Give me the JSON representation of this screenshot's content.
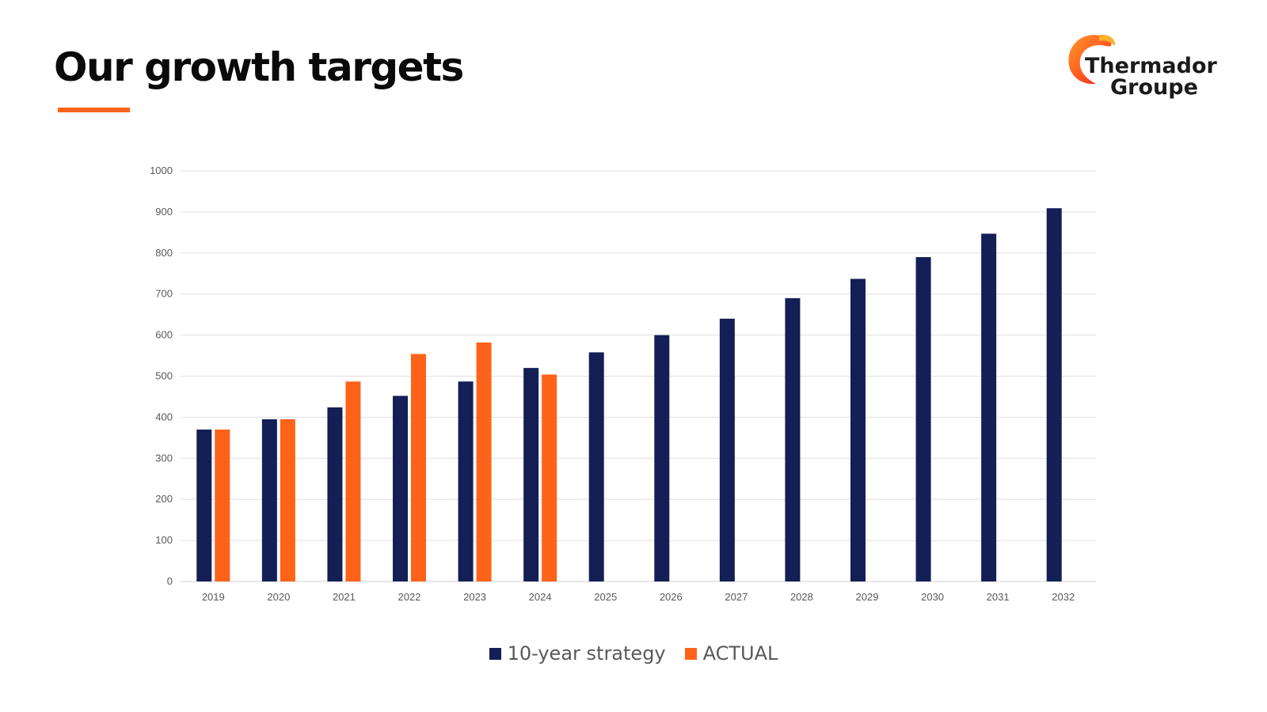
{
  "slide": {
    "title": "Our growth targets",
    "brand_color": "#ff6319"
  },
  "logo": {
    "line1": "Thermador",
    "line2": "Groupe"
  },
  "chart_data": {
    "type": "bar",
    "title": "",
    "xlabel": "",
    "ylabel": "",
    "ylim": [
      0,
      1000
    ],
    "yticks": [
      0,
      100,
      200,
      300,
      400,
      500,
      600,
      700,
      800,
      900,
      1000
    ],
    "grid": true,
    "legend_position": "bottom",
    "categories": [
      "2019",
      "2020",
      "2021",
      "2022",
      "2023",
      "2024",
      "2025",
      "2026",
      "2027",
      "2028",
      "2029",
      "2030",
      "2031",
      "2032"
    ],
    "series": [
      {
        "name": "10-year strategy",
        "color": "#131f55",
        "values": [
          370,
          395,
          424,
          452,
          487,
          520,
          558,
          600,
          640,
          690,
          737,
          790,
          847,
          909
        ]
      },
      {
        "name": "ACTUAL",
        "color": "#ff6319",
        "values": [
          370,
          395,
          487,
          554,
          582,
          504,
          null,
          null,
          null,
          null,
          null,
          null,
          null,
          null
        ]
      }
    ]
  }
}
